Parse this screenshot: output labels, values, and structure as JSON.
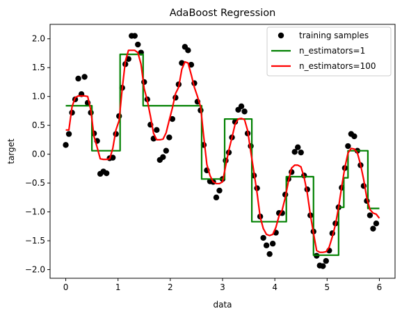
{
  "chart_data": {
    "type": "scatter",
    "title": "AdaBoost Regression",
    "xlabel": "data",
    "ylabel": "target",
    "xlim": [
      -0.3,
      6.3
    ],
    "ylim": [
      -2.15,
      2.25
    ],
    "xticks": [
      0,
      1,
      2,
      3,
      4,
      5,
      6
    ],
    "yticks": [
      -2.0,
      -1.5,
      -1.0,
      -0.5,
      0.0,
      0.5,
      1.0,
      1.5,
      2.0
    ],
    "grid": false,
    "legend_position": "top-right",
    "series": [
      {
        "name": "training samples",
        "kind": "scatter",
        "color": "#000000",
        "points": [
          [
            0.0,
            0.16
          ],
          [
            0.06,
            0.35
          ],
          [
            0.12,
            0.72
          ],
          [
            0.18,
            0.95
          ],
          [
            0.24,
            1.31
          ],
          [
            0.3,
            1.04
          ],
          [
            0.36,
            1.34
          ],
          [
            0.42,
            0.89
          ],
          [
            0.48,
            0.72
          ],
          [
            0.54,
            0.36
          ],
          [
            0.6,
            0.23
          ],
          [
            0.66,
            -0.34
          ],
          [
            0.72,
            -0.3
          ],
          [
            0.78,
            -0.33
          ],
          [
            0.84,
            -0.07
          ],
          [
            0.9,
            -0.06
          ],
          [
            0.96,
            0.35
          ],
          [
            1.02,
            0.66
          ],
          [
            1.08,
            1.15
          ],
          [
            1.14,
            1.56
          ],
          [
            1.2,
            1.65
          ],
          [
            1.26,
            2.05
          ],
          [
            1.32,
            2.05
          ],
          [
            1.38,
            1.9
          ],
          [
            1.44,
            1.76
          ],
          [
            1.5,
            1.25
          ],
          [
            1.56,
            0.95
          ],
          [
            1.62,
            0.51
          ],
          [
            1.68,
            0.27
          ],
          [
            1.74,
            0.42
          ],
          [
            1.8,
            -0.1
          ],
          [
            1.86,
            -0.05
          ],
          [
            1.92,
            0.06
          ],
          [
            1.98,
            0.29
          ],
          [
            2.04,
            0.61
          ],
          [
            2.1,
            0.98
          ],
          [
            2.16,
            1.21
          ],
          [
            2.22,
            1.58
          ],
          [
            2.28,
            1.86
          ],
          [
            2.34,
            1.8
          ],
          [
            2.4,
            1.55
          ],
          [
            2.46,
            1.23
          ],
          [
            2.52,
            0.91
          ],
          [
            2.58,
            0.76
          ],
          [
            2.64,
            0.16
          ],
          [
            2.7,
            -0.28
          ],
          [
            2.76,
            -0.47
          ],
          [
            2.82,
            -0.48
          ],
          [
            2.88,
            -0.75
          ],
          [
            2.94,
            -0.63
          ],
          [
            3.0,
            -0.43
          ],
          [
            3.06,
            -0.11
          ],
          [
            3.12,
            0.03
          ],
          [
            3.18,
            0.29
          ],
          [
            3.24,
            0.56
          ],
          [
            3.3,
            0.77
          ],
          [
            3.36,
            0.83
          ],
          [
            3.42,
            0.74
          ],
          [
            3.48,
            0.36
          ],
          [
            3.54,
            0.14
          ],
          [
            3.6,
            -0.37
          ],
          [
            3.66,
            -0.59
          ],
          [
            3.72,
            -1.08
          ],
          [
            3.78,
            -1.45
          ],
          [
            3.84,
            -1.58
          ],
          [
            3.9,
            -1.73
          ],
          [
            3.96,
            -1.55
          ],
          [
            4.02,
            -1.36
          ],
          [
            4.08,
            -1.02
          ],
          [
            4.14,
            -1.02
          ],
          [
            4.2,
            -0.7
          ],
          [
            4.26,
            -0.43
          ],
          [
            4.32,
            -0.31
          ],
          [
            4.38,
            0.04
          ],
          [
            4.44,
            0.12
          ],
          [
            4.5,
            0.03
          ],
          [
            4.56,
            -0.37
          ],
          [
            4.62,
            -0.61
          ],
          [
            4.68,
            -1.06
          ],
          [
            4.74,
            -1.34
          ],
          [
            4.8,
            -1.76
          ],
          [
            4.86,
            -1.93
          ],
          [
            4.92,
            -1.94
          ],
          [
            4.98,
            -1.85
          ],
          [
            5.04,
            -1.67
          ],
          [
            5.1,
            -1.37
          ],
          [
            5.16,
            -1.2
          ],
          [
            5.22,
            -0.92
          ],
          [
            5.28,
            -0.58
          ],
          [
            5.34,
            -0.24
          ],
          [
            5.4,
            0.14
          ],
          [
            5.46,
            0.35
          ],
          [
            5.52,
            0.31
          ],
          [
            5.58,
            0.06
          ],
          [
            5.64,
            -0.19
          ],
          [
            5.7,
            -0.55
          ],
          [
            5.76,
            -0.81
          ],
          [
            5.82,
            -1.06
          ],
          [
            5.88,
            -1.29
          ],
          [
            5.94,
            -1.2
          ]
        ]
      },
      {
        "name": "n_estimators=1",
        "kind": "line",
        "color": "#008000",
        "points": [
          [
            0.0,
            0.84
          ],
          [
            0.5,
            0.84
          ],
          [
            0.5,
            0.06
          ],
          [
            1.04,
            0.06
          ],
          [
            1.04,
            1.73
          ],
          [
            1.48,
            1.73
          ],
          [
            1.48,
            0.84
          ],
          [
            2.6,
            0.84
          ],
          [
            2.6,
            -0.43
          ],
          [
            3.04,
            -0.43
          ],
          [
            3.04,
            0.61
          ],
          [
            3.56,
            0.61
          ],
          [
            3.56,
            -1.17
          ],
          [
            4.22,
            -1.17
          ],
          [
            4.22,
            -0.39
          ],
          [
            4.74,
            -0.39
          ],
          [
            4.74,
            -1.75
          ],
          [
            5.22,
            -1.75
          ],
          [
            5.22,
            -0.92
          ],
          [
            5.32,
            -0.92
          ],
          [
            5.32,
            -0.41
          ],
          [
            5.4,
            -0.41
          ],
          [
            5.4,
            0.06
          ],
          [
            5.78,
            0.06
          ],
          [
            5.78,
            -0.94
          ],
          [
            6.0,
            -0.94
          ]
        ]
      },
      {
        "name": "n_estimators=100",
        "kind": "line",
        "color": "#ff0000",
        "points": [
          [
            0.0,
            0.42
          ],
          [
            0.06,
            0.42
          ],
          [
            0.12,
            0.82
          ],
          [
            0.18,
            0.98
          ],
          [
            0.24,
            1.01
          ],
          [
            0.3,
            1.01
          ],
          [
            0.36,
            1.01
          ],
          [
            0.42,
            1.0
          ],
          [
            0.48,
            0.76
          ],
          [
            0.54,
            0.31
          ],
          [
            0.6,
            0.12
          ],
          [
            0.66,
            -0.08
          ],
          [
            0.72,
            -0.09
          ],
          [
            0.78,
            -0.09
          ],
          [
            0.84,
            -0.08
          ],
          [
            0.9,
            0.1
          ],
          [
            0.96,
            0.42
          ],
          [
            1.02,
            0.58
          ],
          [
            1.08,
            1.13
          ],
          [
            1.14,
            1.61
          ],
          [
            1.2,
            1.8
          ],
          [
            1.26,
            1.8
          ],
          [
            1.32,
            1.8
          ],
          [
            1.38,
            1.76
          ],
          [
            1.44,
            1.56
          ],
          [
            1.5,
            1.14
          ],
          [
            1.56,
            0.93
          ],
          [
            1.62,
            0.66
          ],
          [
            1.68,
            0.36
          ],
          [
            1.74,
            0.25
          ],
          [
            1.8,
            0.25
          ],
          [
            1.86,
            0.26
          ],
          [
            1.92,
            0.37
          ],
          [
            1.98,
            0.59
          ],
          [
            2.04,
            0.8
          ],
          [
            2.1,
            1.05
          ],
          [
            2.16,
            1.16
          ],
          [
            2.22,
            1.47
          ],
          [
            2.28,
            1.6
          ],
          [
            2.34,
            1.58
          ],
          [
            2.4,
            1.38
          ],
          [
            2.46,
            1.16
          ],
          [
            2.52,
            1.0
          ],
          [
            2.58,
            0.82
          ],
          [
            2.64,
            0.3
          ],
          [
            2.7,
            -0.18
          ],
          [
            2.76,
            -0.37
          ],
          [
            2.82,
            -0.48
          ],
          [
            2.88,
            -0.51
          ],
          [
            2.94,
            -0.51
          ],
          [
            3.0,
            -0.48
          ],
          [
            3.06,
            -0.2
          ],
          [
            3.12,
            0.07
          ],
          [
            3.18,
            0.29
          ],
          [
            3.24,
            0.52
          ],
          [
            3.3,
            0.61
          ],
          [
            3.36,
            0.62
          ],
          [
            3.42,
            0.6
          ],
          [
            3.48,
            0.41
          ],
          [
            3.54,
            0.04
          ],
          [
            3.6,
            -0.31
          ],
          [
            3.66,
            -0.67
          ],
          [
            3.72,
            -1.09
          ],
          [
            3.78,
            -1.29
          ],
          [
            3.84,
            -1.39
          ],
          [
            3.9,
            -1.41
          ],
          [
            3.96,
            -1.39
          ],
          [
            4.02,
            -1.27
          ],
          [
            4.08,
            -1.07
          ],
          [
            4.14,
            -0.97
          ],
          [
            4.2,
            -0.75
          ],
          [
            4.26,
            -0.47
          ],
          [
            4.32,
            -0.24
          ],
          [
            4.38,
            -0.19
          ],
          [
            4.44,
            -0.19
          ],
          [
            4.5,
            -0.22
          ],
          [
            4.56,
            -0.4
          ],
          [
            4.62,
            -0.67
          ],
          [
            4.68,
            -1.05
          ],
          [
            4.74,
            -1.37
          ],
          [
            4.8,
            -1.67
          ],
          [
            4.86,
            -1.7
          ],
          [
            4.92,
            -1.7
          ],
          [
            4.98,
            -1.69
          ],
          [
            5.04,
            -1.61
          ],
          [
            5.1,
            -1.43
          ],
          [
            5.16,
            -1.22
          ],
          [
            5.22,
            -0.92
          ],
          [
            5.28,
            -0.56
          ],
          [
            5.34,
            -0.23
          ],
          [
            5.4,
            0.02
          ],
          [
            5.46,
            0.1
          ],
          [
            5.52,
            0.09
          ],
          [
            5.58,
            0.02
          ],
          [
            5.64,
            -0.18
          ],
          [
            5.7,
            -0.44
          ],
          [
            5.76,
            -0.76
          ],
          [
            5.82,
            -0.96
          ],
          [
            5.88,
            -1.02
          ],
          [
            5.94,
            -1.04
          ],
          [
            6.0,
            -1.11
          ]
        ]
      }
    ]
  }
}
